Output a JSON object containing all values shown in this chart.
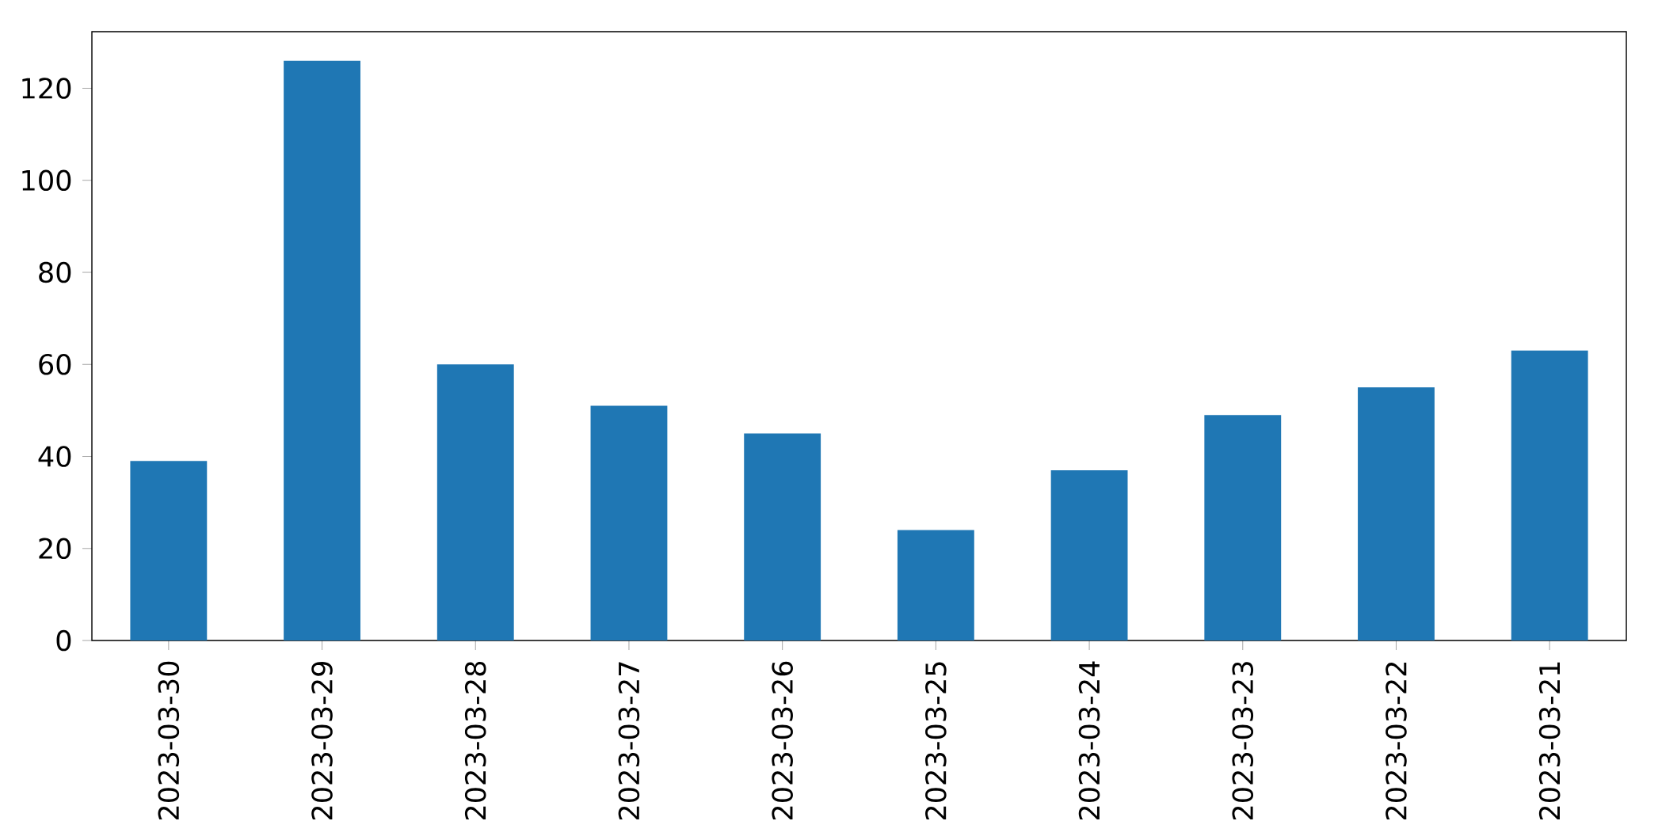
{
  "chart_data": {
    "type": "bar",
    "categories": [
      "2023-03-30",
      "2023-03-29",
      "2023-03-28",
      "2023-03-27",
      "2023-03-26",
      "2023-03-25",
      "2023-03-24",
      "2023-03-23",
      "2023-03-22",
      "2023-03-21"
    ],
    "values": [
      39,
      126,
      60,
      51,
      45,
      24,
      37,
      49,
      55,
      63
    ],
    "color": "#1f77b4",
    "ylim": [
      0,
      132.3
    ],
    "yticks": [
      0,
      20,
      40,
      60,
      80,
      100,
      120
    ]
  }
}
